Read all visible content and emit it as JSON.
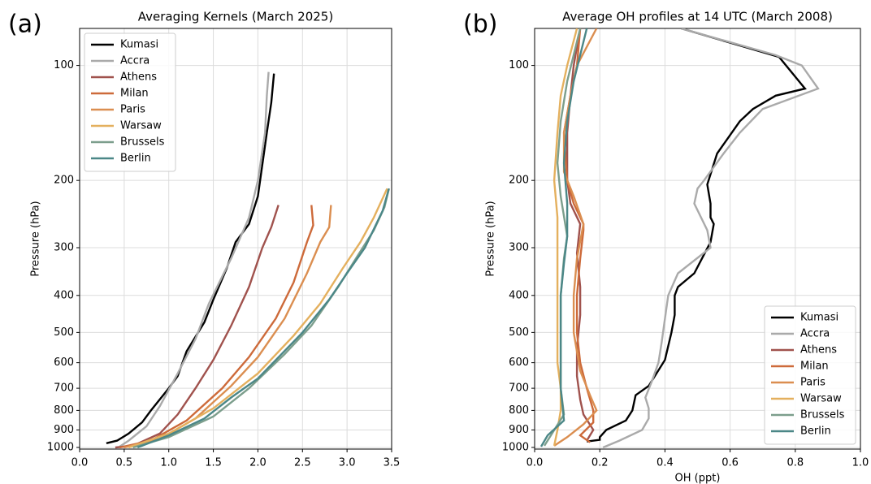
{
  "chart_data": [
    {
      "type": "line",
      "panel_label": "(a)",
      "title": "Averaging Kernels (March 2025)",
      "y_label": "Pressure (hPa)",
      "y_scale": "log",
      "grid": true,
      "legend": "upper left",
      "xlim": [
        0,
        3.5
      ],
      "xticks": [
        {
          "value": 0,
          "label": "0.0"
        },
        0.5,
        {
          "value": 1,
          "label": "1.0"
        },
        1.5,
        {
          "value": 2,
          "label": "2.0"
        },
        2.5,
        {
          "value": 3,
          "label": "3.0"
        },
        3.5
      ],
      "ylim": [
        1010,
        80
      ],
      "yticks": [
        100,
        200,
        300,
        400,
        500,
        600,
        700,
        800,
        900,
        1000
      ],
      "series": [
        {
          "name": "Kumasi",
          "color": "#000000",
          "x": [
            0.3,
            0.42,
            0.55,
            0.7,
            0.8,
            1.0,
            1.1,
            1.2,
            1.4,
            1.5,
            1.65,
            1.75,
            1.9,
            2.0,
            2.1,
            2.15,
            2.18
          ],
          "y": [
            975,
            960,
            920,
            860,
            800,
            700,
            650,
            560,
            470,
            410,
            340,
            290,
            260,
            220,
            150,
            125,
            105
          ]
        },
        {
          "name": "Accra",
          "color": "#aaaaaa",
          "x": [
            0.45,
            0.55,
            0.75,
            0.9,
            1.1,
            1.3,
            1.45,
            1.7,
            1.9,
            2.0,
            2.08,
            2.1,
            2.12
          ],
          "y": [
            995,
            960,
            880,
            780,
            640,
            520,
            420,
            320,
            250,
            200,
            150,
            120,
            104
          ]
        },
        {
          "name": "Athens",
          "color": "#a0524d",
          "x": [
            0.4,
            0.6,
            0.9,
            1.1,
            1.3,
            1.5,
            1.7,
            1.9,
            2.05,
            2.15,
            2.23
          ],
          "y": [
            1000,
            990,
            920,
            820,
            700,
            590,
            480,
            380,
            300,
            265,
            232
          ]
        },
        {
          "name": "Milan",
          "color": "#cd6a3a",
          "x": [
            0.45,
            0.8,
            1.2,
            1.6,
            1.9,
            2.2,
            2.4,
            2.55,
            2.62,
            2.6
          ],
          "y": [
            1000,
            960,
            850,
            700,
            580,
            460,
            370,
            290,
            262,
            232
          ]
        },
        {
          "name": "Paris",
          "color": "#db8e50",
          "x": [
            0.5,
            0.9,
            1.3,
            1.7,
            2.0,
            2.3,
            2.55,
            2.7,
            2.8,
            2.82
          ],
          "y": [
            1000,
            950,
            840,
            690,
            580,
            460,
            350,
            290,
            265,
            232
          ]
        },
        {
          "name": "Warsaw",
          "color": "#e4b05e",
          "x": [
            0.55,
            1.0,
            1.5,
            2.0,
            2.4,
            2.7,
            2.95,
            3.15,
            3.3,
            3.45
          ],
          "y": [
            1000,
            920,
            790,
            640,
            510,
            420,
            340,
            290,
            250,
            210
          ]
        },
        {
          "name": "Brussels",
          "color": "#7c9e8c",
          "x": [
            0.6,
            1.0,
            1.5,
            1.9,
            2.3,
            2.6,
            2.9,
            3.1,
            3.3,
            3.42,
            3.47
          ],
          "y": [
            1000,
            940,
            830,
            700,
            570,
            480,
            380,
            320,
            270,
            235,
            210
          ]
        },
        {
          "name": "Berlin",
          "color": "#4b8787",
          "x": [
            0.65,
            1.0,
            1.4,
            1.7,
            2.0,
            2.5,
            2.8,
            3.0,
            3.2,
            3.4,
            3.47
          ],
          "y": [
            1000,
            930,
            840,
            740,
            660,
            500,
            410,
            350,
            300,
            240,
            210
          ]
        }
      ]
    },
    {
      "type": "line",
      "panel_label": "(b)",
      "title": "Average OH profiles at 14 UTC (March 2008)",
      "x_label": "OH (ppt)",
      "y_label": "Pressure (hPa)",
      "y_scale": "log",
      "grid": true,
      "legend": "lower right",
      "xlim": [
        0,
        1
      ],
      "xticks": [
        {
          "value": 0,
          "label": "0.0"
        },
        0.2,
        0.4,
        0.6,
        0.8,
        {
          "value": 1,
          "label": "1.0"
        }
      ],
      "ylim": [
        1010,
        80
      ],
      "yticks": [
        100,
        200,
        300,
        400,
        500,
        600,
        700,
        800,
        900,
        1000
      ],
      "series": [
        {
          "name": "Kumasi",
          "color": "#000000",
          "x": [
            0.16,
            0.2,
            0.2,
            0.22,
            0.28,
            0.3,
            0.31,
            0.35,
            0.4,
            0.42,
            0.43,
            0.43,
            0.44,
            0.49,
            0.54,
            0.55,
            0.54,
            0.54,
            0.53,
            0.56,
            0.63,
            0.67,
            0.74,
            0.83,
            0.75,
            0.45
          ],
          "y": [
            965,
            955,
            940,
            900,
            850,
            800,
            730,
            690,
            590,
            500,
            450,
            400,
            380,
            350,
            290,
            260,
            250,
            230,
            205,
            170,
            140,
            130,
            120,
            115,
            95,
            80
          ]
        },
        {
          "name": "Accra",
          "color": "#aaaaaa",
          "x": [
            0.21,
            0.26,
            0.33,
            0.35,
            0.35,
            0.34,
            0.36,
            0.38,
            0.39,
            0.4,
            0.41,
            0.44,
            0.54,
            0.53,
            0.49,
            0.5,
            0.52,
            0.58,
            0.63,
            0.7,
            0.87,
            0.82,
            0.74,
            0.45
          ],
          "y": [
            1000,
            960,
            900,
            840,
            790,
            740,
            670,
            600,
            530,
            460,
            400,
            350,
            300,
            270,
            230,
            210,
            200,
            170,
            150,
            130,
            115,
            100,
            94,
            80
          ]
        },
        {
          "name": "Athens",
          "color": "#a0524d",
          "x": [
            0.16,
            0.18,
            0.15,
            0.14,
            0.13,
            0.13,
            0.14,
            0.14,
            0.13,
            0.14,
            0.11,
            0.1,
            0.1,
            0.11,
            0.12,
            0.14
          ],
          "y": [
            960,
            900,
            820,
            750,
            650,
            550,
            450,
            380,
            310,
            260,
            230,
            200,
            150,
            120,
            100,
            80
          ]
        },
        {
          "name": "Milan",
          "color": "#cd6a3a",
          "x": [
            0.17,
            0.14,
            0.18,
            0.18,
            0.16,
            0.14,
            0.13,
            0.13,
            0.14,
            0.15,
            0.15,
            0.12,
            0.1,
            0.09,
            0.11,
            0.13,
            0.14
          ],
          "y": [
            970,
            930,
            860,
            800,
            700,
            600,
            500,
            400,
            320,
            270,
            260,
            230,
            200,
            150,
            120,
            100,
            80
          ]
        },
        {
          "name": "Paris",
          "color": "#db8e50",
          "x": [
            0.06,
            0.1,
            0.15,
            0.19,
            0.17,
            0.14,
            0.12,
            0.12,
            0.13,
            0.15,
            0.12,
            0.09,
            0.09,
            0.11,
            0.13,
            0.19
          ],
          "y": [
            990,
            940,
            870,
            800,
            730,
            630,
            500,
            400,
            320,
            260,
            220,
            190,
            150,
            120,
            100,
            80
          ]
        },
        {
          "name": "Warsaw",
          "color": "#e4b05e",
          "x": [
            0.06,
            0.07,
            0.08,
            0.08,
            0.07,
            0.07,
            0.07,
            0.07,
            0.07,
            0.06,
            0.07,
            0.08,
            0.1,
            0.13
          ],
          "y": [
            990,
            900,
            800,
            700,
            600,
            500,
            400,
            300,
            250,
            200,
            150,
            120,
            100,
            80
          ]
        },
        {
          "name": "Brussels",
          "color": "#7c9e8c",
          "x": [
            0.03,
            0.05,
            0.09,
            0.08,
            0.08,
            0.08,
            0.08,
            0.09,
            0.1,
            0.08,
            0.07,
            0.08,
            0.1,
            0.14
          ],
          "y": [
            990,
            930,
            820,
            700,
            600,
            500,
            400,
            320,
            280,
            220,
            180,
            140,
            110,
            80
          ]
        },
        {
          "name": "Berlin",
          "color": "#4b8787",
          "x": [
            0.02,
            0.04,
            0.09,
            0.08,
            0.08,
            0.08,
            0.08,
            0.09,
            0.1,
            0.1,
            0.09,
            0.1,
            0.12,
            0.16
          ],
          "y": [
            995,
            930,
            850,
            700,
            600,
            500,
            400,
            330,
            280,
            230,
            180,
            140,
            110,
            80
          ]
        }
      ]
    }
  ]
}
